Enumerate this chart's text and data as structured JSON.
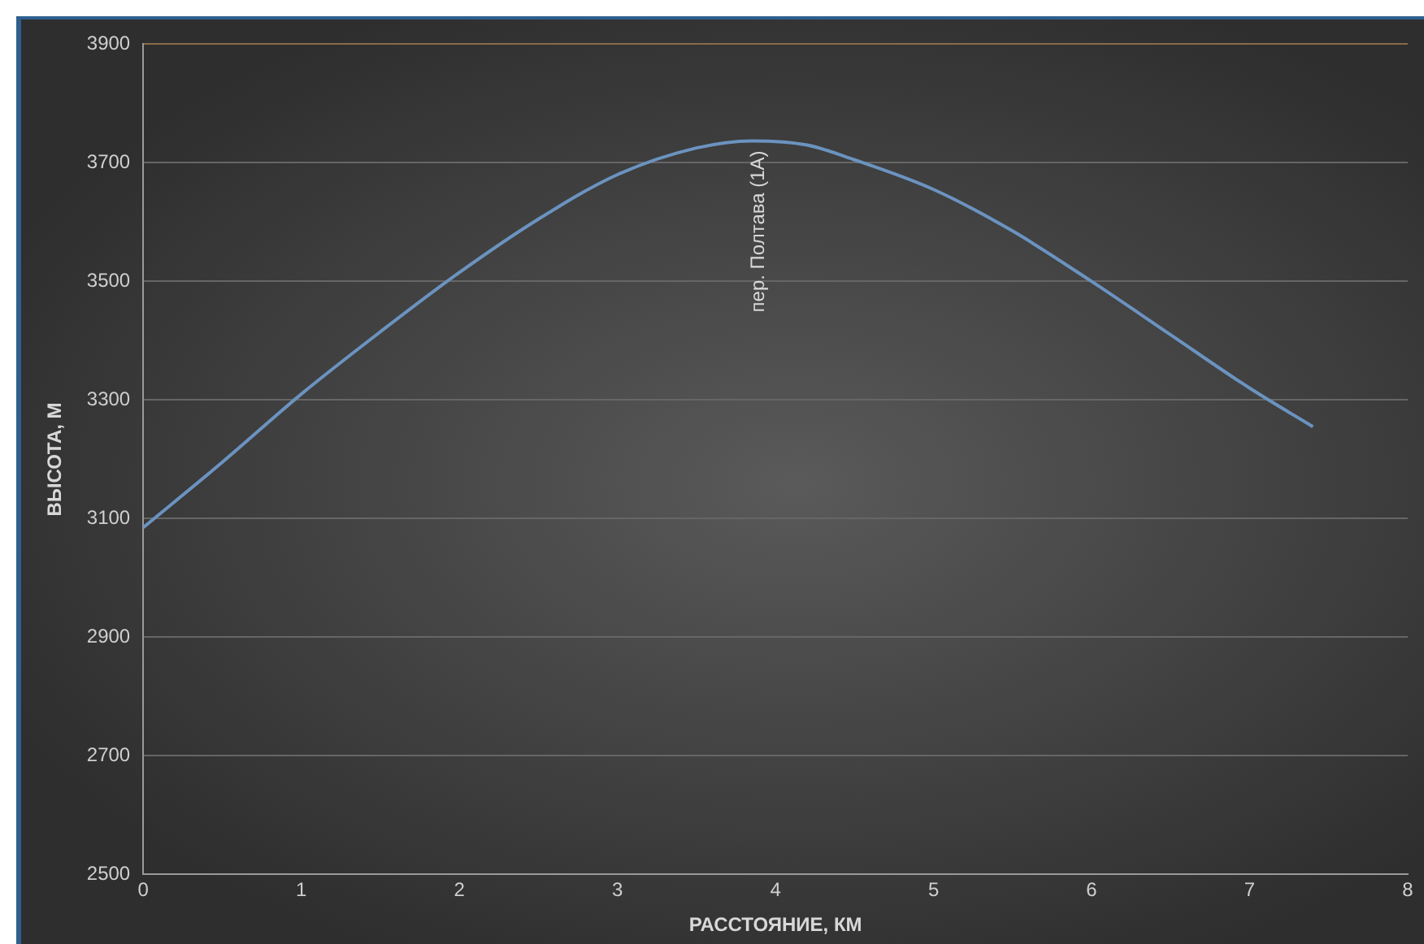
{
  "chart_data": {
    "type": "line",
    "xlabel": "РАССТОЯНИЕ, КМ",
    "ylabel": "ВЫСОТА, М",
    "x": [
      0,
      0.5,
      1,
      1.5,
      2,
      2.5,
      3,
      3.5,
      3.85,
      4.2,
      4.5,
      5,
      5.5,
      6,
      6.5,
      7,
      7.4
    ],
    "series": [
      {
        "color": "#6b93c0",
        "values": [
          3085,
          3195,
          3310,
          3415,
          3515,
          3605,
          3680,
          3725,
          3737,
          3730,
          3705,
          3655,
          3585,
          3500,
          3410,
          3320,
          3255
        ]
      }
    ],
    "xlim": [
      0,
      8
    ],
    "xticks": [
      0,
      1,
      2,
      3,
      4,
      5,
      6,
      7,
      8
    ],
    "ylim": [
      2500,
      3900
    ],
    "yticks": [
      2500,
      2700,
      2900,
      3100,
      3300,
      3500,
      3700,
      3900
    ],
    "grid": "y",
    "legend": false,
    "marker": "none",
    "line_style": "solid",
    "annotations": [
      {
        "text": "пер. Полтава (1А)",
        "x": 3.85,
        "y": 3737
      }
    ]
  }
}
